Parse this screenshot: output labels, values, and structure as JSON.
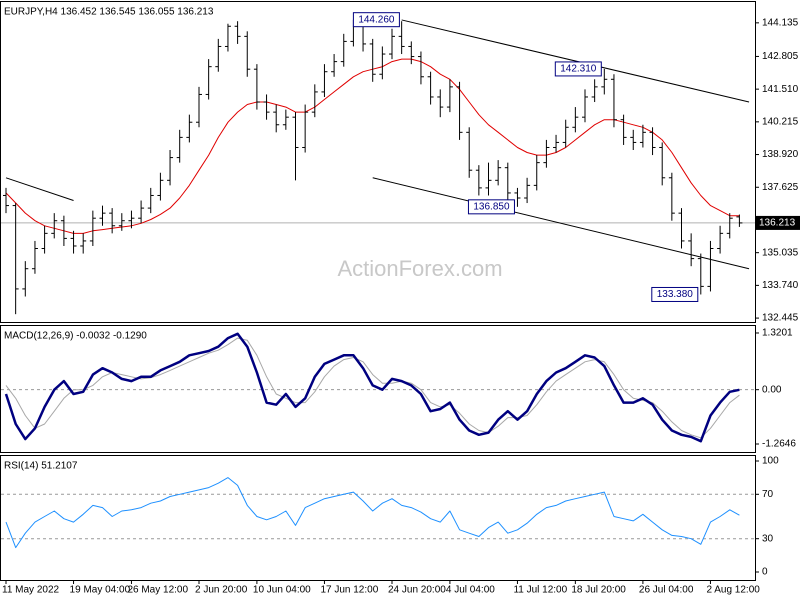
{
  "chart_data": [
    {
      "type": "ohlc",
      "title": "EURJPY,H4  136.452 136.545 136.055 136.213",
      "watermark": "ActionForex.com",
      "color": "#000000",
      "open": [
        137.3,
        136.9,
        133.6,
        134.4,
        135.2,
        135.8,
        136.3,
        135.6,
        135.3,
        135.5,
        136.4,
        136.6,
        136.1,
        136.3,
        136.4,
        136.8,
        137.3,
        137.9,
        138.8,
        139.6,
        140.2,
        141.3,
        142.4,
        143.2,
        144.0,
        143.6,
        142.3,
        141.0,
        140.6,
        140.1,
        140.4,
        139.2,
        140.6,
        141.4,
        142.2,
        142.6,
        143.4,
        144.0,
        143.3,
        142.1,
        142.9,
        143.6,
        143.2,
        142.8,
        142.0,
        141.2,
        140.8,
        141.6,
        139.8,
        138.3,
        137.6,
        137.9,
        138.4,
        137.4,
        137.2,
        137.7,
        138.6,
        139.2,
        139.4,
        140.0,
        140.4,
        141.2,
        141.6,
        141.9,
        140.3,
        139.6,
        139.4,
        139.8,
        139.2,
        138.0,
        136.6,
        135.5,
        134.8,
        133.7,
        135.2,
        135.8,
        136.452
      ],
      "high": [
        137.6,
        137.0,
        134.7,
        135.5,
        136.1,
        136.6,
        136.5,
        135.9,
        135.8,
        136.7,
        136.9,
        136.8,
        136.6,
        136.7,
        137.1,
        137.6,
        138.2,
        139.1,
        139.9,
        140.5,
        141.6,
        142.7,
        143.5,
        144.1,
        144.2,
        143.8,
        142.5,
        141.3,
        140.9,
        140.7,
        140.6,
        140.9,
        141.7,
        142.5,
        142.9,
        143.7,
        144.26,
        144.2,
        143.5,
        143.2,
        143.9,
        144.2,
        143.4,
        143.0,
        142.2,
        141.5,
        141.9,
        141.8,
        140.0,
        138.5,
        138.6,
        138.7,
        138.6,
        137.6,
        138.0,
        138.9,
        139.5,
        139.7,
        140.3,
        140.8,
        141.5,
        141.9,
        142.31,
        142.1,
        140.5,
        139.9,
        140.1,
        140.0,
        139.4,
        138.2,
        136.8,
        135.8,
        135.0,
        135.5,
        136.1,
        136.6,
        136.545
      ],
      "low": [
        136.6,
        132.6,
        133.3,
        134.2,
        135.0,
        135.6,
        135.3,
        135.0,
        135.0,
        135.3,
        136.1,
        135.8,
        135.9,
        136.0,
        136.2,
        136.6,
        137.1,
        137.7,
        138.6,
        139.4,
        140.0,
        141.1,
        142.2,
        143.0,
        143.3,
        142.0,
        140.7,
        140.3,
        139.8,
        139.9,
        137.9,
        139.0,
        140.4,
        141.2,
        142.0,
        142.4,
        143.2,
        143.0,
        141.8,
        141.9,
        142.7,
        142.9,
        142.5,
        141.7,
        140.9,
        140.4,
        140.6,
        139.5,
        138.0,
        137.3,
        137.3,
        137.7,
        137.1,
        136.85,
        137.0,
        137.5,
        138.4,
        139.0,
        139.2,
        139.8,
        140.2,
        141.0,
        141.3,
        140.0,
        139.3,
        139.1,
        139.2,
        138.9,
        137.7,
        136.3,
        135.2,
        134.5,
        133.38,
        133.5,
        135.0,
        135.6,
        136.055
      ],
      "close": [
        136.9,
        133.6,
        134.4,
        135.2,
        135.8,
        136.3,
        135.6,
        135.3,
        135.5,
        136.4,
        136.6,
        136.1,
        136.3,
        136.4,
        136.8,
        137.3,
        137.9,
        138.8,
        139.6,
        140.2,
        141.3,
        142.4,
        143.2,
        144.0,
        143.6,
        142.3,
        141.0,
        140.6,
        140.1,
        140.4,
        139.2,
        140.6,
        141.4,
        142.2,
        142.6,
        143.4,
        144.0,
        143.3,
        142.1,
        142.9,
        143.6,
        143.2,
        142.8,
        142.0,
        141.2,
        140.8,
        141.6,
        139.8,
        138.3,
        137.6,
        137.9,
        138.4,
        137.4,
        137.2,
        137.7,
        138.6,
        139.2,
        139.4,
        140.0,
        140.4,
        141.2,
        141.6,
        141.9,
        140.3,
        139.6,
        139.4,
        139.8,
        139.2,
        138.0,
        136.6,
        135.5,
        134.8,
        133.7,
        135.2,
        135.8,
        136.4,
        136.213
      ],
      "ma": {
        "color": "#e00000",
        "values": [
          137.4,
          137.0,
          136.6,
          136.3,
          136.1,
          136.0,
          135.9,
          135.8,
          135.8,
          135.9,
          135.95,
          136.0,
          136.05,
          136.1,
          136.2,
          136.35,
          136.55,
          136.8,
          137.2,
          137.7,
          138.3,
          138.9,
          139.6,
          140.2,
          140.6,
          140.9,
          141.0,
          141.0,
          140.9,
          140.8,
          140.6,
          140.6,
          140.8,
          141.1,
          141.4,
          141.7,
          142.0,
          142.2,
          142.3,
          142.4,
          142.6,
          142.7,
          142.7,
          142.6,
          142.4,
          142.1,
          141.9,
          141.5,
          141.0,
          140.5,
          140.1,
          139.8,
          139.5,
          139.2,
          139.0,
          138.9,
          138.9,
          139.0,
          139.2,
          139.5,
          139.8,
          140.1,
          140.3,
          140.3,
          140.2,
          140.1,
          140.0,
          139.8,
          139.5,
          139.0,
          138.4,
          137.8,
          137.3,
          136.9,
          136.7,
          136.5,
          136.5
        ]
      },
      "last_price": 136.213,
      "ylim": [
        132.29,
        145.0
      ],
      "yticks": [
        144.135,
        142.805,
        {
          "value": 141.51,
          "label": "141.510"
        },
        140.215,
        {
          "value": 138.92,
          "label": "138.920"
        },
        137.625,
        135.035,
        {
          "value": 133.74,
          "label": "133.740"
        },
        132.445
      ],
      "annotations": [
        {
          "x": 36,
          "value": 144.26,
          "label": "144.260"
        },
        {
          "x": 62,
          "value": 142.31,
          "label": "142.310"
        },
        {
          "x": 53,
          "value": 136.85,
          "label": "136.850"
        },
        {
          "x": 72,
          "value": 133.38,
          "label": "133.380"
        }
      ],
      "trendlines": [
        {
          "x": [
            0,
            7
          ],
          "y": [
            138.0,
            137.1
          ]
        },
        {
          "x": [
            41,
            77
          ],
          "y": [
            144.25,
            141.0
          ]
        },
        {
          "x": [
            38,
            77
          ],
          "y": [
            138.0,
            134.4
          ]
        }
      ]
    },
    {
      "type": "macd",
      "title": "MACD(12,26,9) -0.0032 -0.1290",
      "series": [
        {
          "color": "#000080",
          "values": [
            -0.1,
            -0.8,
            -1.15,
            -0.9,
            -0.4,
            0.0,
            0.2,
            -0.1,
            -0.05,
            0.35,
            0.5,
            0.4,
            0.25,
            0.2,
            0.3,
            0.3,
            0.45,
            0.55,
            0.65,
            0.8,
            0.85,
            0.9,
            1.0,
            1.2,
            1.3,
            1.0,
            0.4,
            -0.3,
            -0.35,
            -0.1,
            -0.4,
            -0.2,
            0.3,
            0.6,
            0.7,
            0.8,
            0.8,
            0.5,
            0.1,
            0.0,
            0.25,
            0.2,
            0.1,
            -0.1,
            -0.5,
            -0.45,
            -0.3,
            -0.7,
            -0.95,
            -1.05,
            -1.0,
            -0.7,
            -0.5,
            -0.7,
            -0.5,
            -0.1,
            0.2,
            0.4,
            0.5,
            0.65,
            0.8,
            0.75,
            0.55,
            0.1,
            -0.3,
            -0.3,
            -0.2,
            -0.35,
            -0.7,
            -0.95,
            -1.05,
            -1.1,
            -1.2,
            -0.6,
            -0.3,
            -0.05,
            -0.0032
          ]
        },
        {
          "color": "#a8a8a8",
          "values": [
            0.1,
            -0.2,
            -0.6,
            -0.9,
            -0.8,
            -0.5,
            -0.2,
            0.0,
            0.0,
            0.1,
            0.3,
            0.4,
            0.35,
            0.3,
            0.25,
            0.28,
            0.35,
            0.45,
            0.55,
            0.65,
            0.75,
            0.85,
            0.92,
            1.05,
            1.2,
            1.15,
            0.8,
            0.3,
            -0.1,
            -0.2,
            -0.3,
            -0.3,
            -0.05,
            0.3,
            0.55,
            0.7,
            0.75,
            0.65,
            0.35,
            0.15,
            0.15,
            0.2,
            0.15,
            0.0,
            -0.3,
            -0.4,
            -0.35,
            -0.55,
            -0.8,
            -0.95,
            -1.0,
            -0.85,
            -0.65,
            -0.65,
            -0.6,
            -0.35,
            -0.05,
            0.2,
            0.35,
            0.5,
            0.65,
            0.7,
            0.65,
            0.35,
            0.0,
            -0.2,
            -0.25,
            -0.3,
            -0.5,
            -0.75,
            -0.95,
            -1.05,
            -1.12,
            -0.9,
            -0.6,
            -0.3,
            -0.129
          ]
        }
      ],
      "levels": [
        0
      ],
      "ylim": [
        -1.451,
        1.506
      ],
      "yticks": [
        1.3201,
        {
          "value": 0,
          "label": "0.00"
        },
        -1.2646
      ]
    },
    {
      "type": "rsi",
      "title": "RSI(14) 51.2107",
      "series": [
        {
          "color": "#1e90ff",
          "values": [
            45,
            22,
            35,
            45,
            50,
            55,
            48,
            45,
            52,
            60,
            58,
            50,
            55,
            56,
            58,
            62,
            64,
            68,
            70,
            72,
            74,
            76,
            80,
            85,
            78,
            60,
            50,
            47,
            50,
            55,
            42,
            58,
            62,
            66,
            68,
            70,
            72,
            64,
            55,
            62,
            66,
            60,
            58,
            54,
            48,
            45,
            55,
            38,
            35,
            32,
            40,
            45,
            35,
            38,
            44,
            52,
            58,
            60,
            64,
            66,
            68,
            70,
            72,
            50,
            48,
            46,
            52,
            45,
            38,
            33,
            32,
            30,
            25,
            45,
            50,
            56,
            51.2107
          ]
        }
      ],
      "levels": [
        70,
        30
      ],
      "ylim": [
        -7.2,
        105.4
      ],
      "yticks": [
        100,
        70,
        30,
        0
      ],
      "categories": [
        "11 May 2022",
        null,
        null,
        null,
        null,
        null,
        null,
        "19 May 04:00",
        null,
        null,
        null,
        null,
        null,
        "26 May 12:00",
        null,
        null,
        null,
        null,
        null,
        null,
        "2 Jun 20:00",
        null,
        null,
        null,
        null,
        null,
        "10 Jun 04:00",
        null,
        null,
        null,
        null,
        null,
        null,
        "17 Jun 12:00",
        null,
        null,
        null,
        null,
        null,
        null,
        "24 Jun 20:00",
        null,
        null,
        null,
        null,
        null,
        "4 Jul 04:00",
        null,
        null,
        null,
        null,
        null,
        null,
        "11 Jul 12:00",
        null,
        null,
        null,
        null,
        null,
        "18 Jul 20:00",
        null,
        null,
        null,
        null,
        null,
        null,
        "26 Jul 04:00",
        null,
        null,
        null,
        null,
        null,
        null,
        "2 Aug 12:00",
        null,
        null,
        null
      ]
    }
  ]
}
